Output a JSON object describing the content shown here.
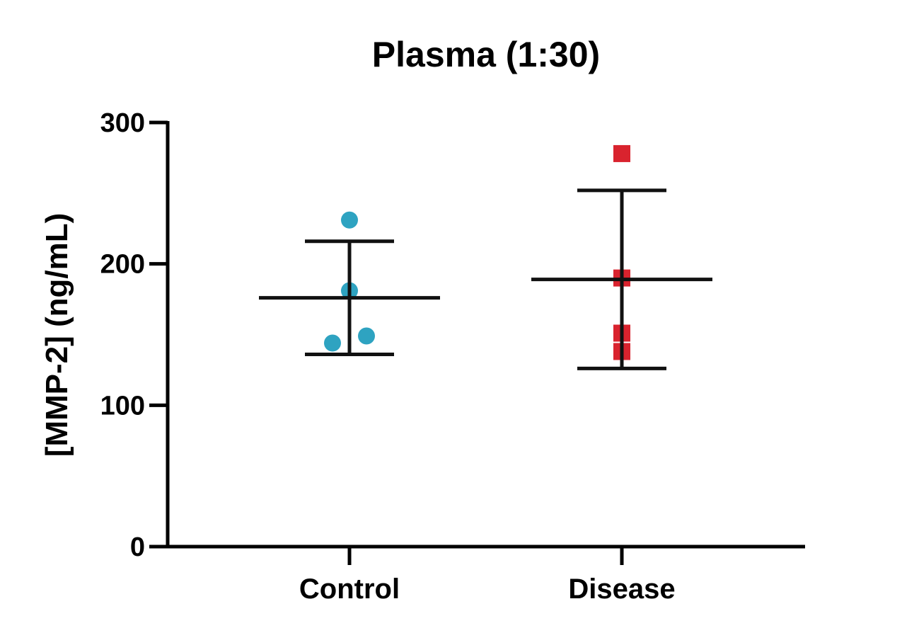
{
  "chart_data": {
    "type": "scatter",
    "title": "Plasma (1:30)",
    "ylabel": "[MMP-2] (ng/mL)",
    "xlabel": "",
    "categories": [
      "Control",
      "Disease"
    ],
    "ylim": [
      0,
      300
    ],
    "yticks": [
      0,
      100,
      200,
      300
    ],
    "grid": false,
    "series": [
      {
        "category": "Control",
        "marker": "circle",
        "color": "#2ea3c1",
        "points": [
          231,
          181,
          149,
          144
        ],
        "mean": 176,
        "sd_upper": 216,
        "sd_lower": 136
      },
      {
        "category": "Disease",
        "marker": "square",
        "color": "#d9232e",
        "points": [
          278,
          190,
          151,
          138
        ],
        "mean": 189,
        "sd_upper": 252,
        "sd_lower": 126
      }
    ]
  }
}
